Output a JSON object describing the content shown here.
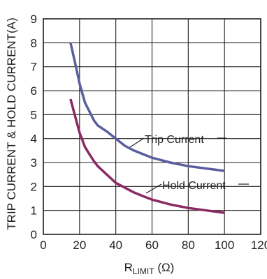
{
  "chart_data": {
    "type": "line",
    "xlabel": {
      "main": "R",
      "sub": "LIMIT",
      "unit": "(Ω)"
    },
    "ylabel": "TRIP CURRENT & HOLD CURRENT(A)",
    "xlim": [
      0,
      120
    ],
    "ylim": [
      0,
      9
    ],
    "x_ticks": [
      "0",
      "20",
      "40",
      "60",
      "80",
      "100",
      "120"
    ],
    "y_ticks": [
      "0",
      "1",
      "2",
      "3",
      "4",
      "5",
      "6",
      "7",
      "8",
      "9"
    ],
    "grid": true,
    "series": [
      {
        "name": "Trip Current",
        "color": "#5b5e9e",
        "x": [
          15,
          18,
          20,
          23,
          25,
          28,
          30,
          35,
          40,
          45,
          50,
          55,
          60,
          70,
          80,
          90,
          100
        ],
        "y": [
          8.0,
          7.0,
          6.3,
          5.5,
          5.2,
          4.75,
          4.55,
          4.3,
          4.0,
          3.7,
          3.5,
          3.35,
          3.2,
          3.0,
          2.85,
          2.75,
          2.65
        ]
      },
      {
        "name": "Hold Current",
        "color": "#8b2a63",
        "x": [
          15,
          18,
          20,
          23,
          25,
          28,
          30,
          35,
          40,
          45,
          50,
          55,
          60,
          70,
          80,
          90,
          100
        ],
        "y": [
          5.65,
          4.8,
          4.25,
          3.65,
          3.4,
          3.05,
          2.85,
          2.5,
          2.15,
          1.95,
          1.75,
          1.6,
          1.45,
          1.25,
          1.1,
          1.0,
          0.9
        ]
      }
    ],
    "annotations": [
      {
        "series": "Trip Current",
        "text": "Trip Current"
      },
      {
        "series": "Hold Current",
        "text": "Hold Current"
      }
    ]
  }
}
